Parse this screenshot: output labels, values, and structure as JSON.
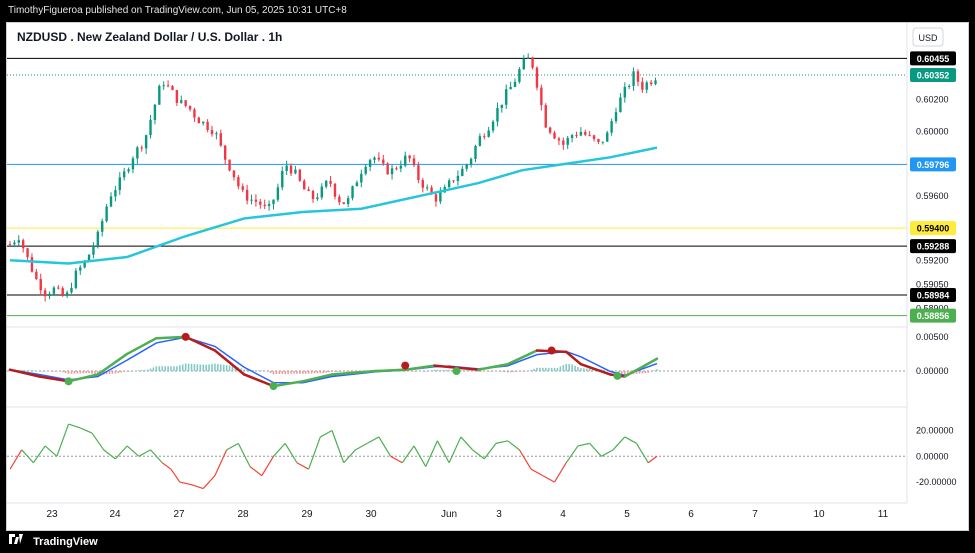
{
  "header": {
    "publisher": "TimothyFigueroa published on TradingView.com, Jun 05, 2025 10:31 UTC+8"
  },
  "footer": {
    "brand": "TradingView"
  },
  "currency_button": "USD",
  "chart_data": [
    {
      "type": "candlestick",
      "title": "NZDUSD . New Zealand Dollar / U.S. Dollar . 1h",
      "currency": "USD",
      "ylim": [
        0.5881,
        0.6065
      ],
      "y_ticks": [
        "0.60455",
        "0.60200",
        "0.60000",
        "0.59600",
        "0.59200",
        "0.59050",
        "0.58900"
      ],
      "x_ticks": [
        "23",
        "24",
        "27",
        "28",
        "29",
        "30",
        "Jun",
        "3",
        "4",
        "5",
        "6",
        "7",
        "10",
        "11"
      ],
      "price_levels": [
        {
          "value": 0.60455,
          "label": "0.60455",
          "line": "#000000",
          "tag_bg": "#000000",
          "tag_fg": "#ffffff"
        },
        {
          "value": 0.60352,
          "label": "0.60352",
          "line": "#089981",
          "tag_bg": "#089981",
          "tag_fg": "#ffffff",
          "dotted": true
        },
        {
          "value": 0.59796,
          "label": "0.59796",
          "line": "#2196f3",
          "tag_bg": "#2196f3",
          "tag_fg": "#ffffff"
        },
        {
          "value": 0.594,
          "label": "0.59400",
          "line": "#ffeb3b",
          "tag_bg": "#ffeb3b",
          "tag_fg": "#000000"
        },
        {
          "value": 0.59288,
          "label": "0.59288",
          "line": "#000000",
          "tag_bg": "#000000",
          "tag_fg": "#ffffff"
        },
        {
          "value": 0.58984,
          "label": "0.58984",
          "line": "#000000",
          "tag_bg": "#000000",
          "tag_fg": "#ffffff"
        },
        {
          "value": 0.58856,
          "label": "0.58856",
          "line": "#4caf50",
          "tag_bg": "#4caf50",
          "tag_fg": "#ffffff"
        }
      ],
      "price_path": [
        [
          0,
          0.593
        ],
        [
          6,
          0.5935
        ],
        [
          12,
          0.5921
        ],
        [
          18,
          0.5908
        ],
        [
          24,
          0.59
        ],
        [
          30,
          0.5902
        ],
        [
          38,
          0.5896
        ],
        [
          44,
          0.591
        ],
        [
          52,
          0.592
        ],
        [
          60,
          0.5935
        ],
        [
          68,
          0.596
        ],
        [
          76,
          0.597
        ],
        [
          84,
          0.5985
        ],
        [
          92,
          0.5995
        ],
        [
          100,
          0.602
        ],
        [
          104,
          0.6032
        ],
        [
          110,
          0.6025
        ],
        [
          116,
          0.6018
        ],
        [
          122,
          0.6015
        ],
        [
          128,
          0.6008
        ],
        [
          134,
          0.6004
        ],
        [
          140,
          0.6
        ],
        [
          146,
          0.5985
        ],
        [
          152,
          0.5975
        ],
        [
          158,
          0.5962
        ],
        [
          164,
          0.5958
        ],
        [
          170,
          0.5956
        ],
        [
          176,
          0.595
        ],
        [
          182,
          0.5962
        ],
        [
          188,
          0.598
        ],
        [
          194,
          0.5975
        ],
        [
          200,
          0.5965
        ],
        [
          206,
          0.5958
        ],
        [
          212,
          0.5962
        ],
        [
          218,
          0.597
        ],
        [
          224,
          0.5958
        ],
        [
          230,
          0.5955
        ],
        [
          236,
          0.5968
        ],
        [
          242,
          0.598
        ],
        [
          248,
          0.5985
        ],
        [
          254,
          0.5978
        ],
        [
          260,
          0.5975
        ],
        [
          266,
          0.598
        ],
        [
          272,
          0.5985
        ],
        [
          278,
          0.5972
        ],
        [
          284,
          0.5965
        ],
        [
          290,
          0.5958
        ],
        [
          296,
          0.5962
        ],
        [
          302,
          0.597
        ],
        [
          308,
          0.5975
        ],
        [
          314,
          0.5982
        ],
        [
          320,
          0.5995
        ],
        [
          326,
          0.6002
        ],
        [
          332,
          0.6012
        ],
        [
          338,
          0.6022
        ],
        [
          344,
          0.603
        ],
        [
          350,
          0.6042
        ],
        [
          354,
          0.6045
        ],
        [
          358,
          0.604
        ],
        [
          362,
          0.602
        ],
        [
          366,
          0.6005
        ],
        [
          372,
          0.5998
        ],
        [
          378,
          0.5992
        ],
        [
          384,
          0.5998
        ],
        [
          390,
          0.6
        ],
        [
          396,
          0.5996
        ],
        [
          402,
          0.5992
        ],
        [
          408,
          0.5998
        ],
        [
          414,
          0.6015
        ],
        [
          420,
          0.6025
        ],
        [
          426,
          0.6035
        ],
        [
          432,
          0.6028
        ],
        [
          438,
          0.6032
        ],
        [
          442,
          0.6035
        ]
      ],
      "ma_points": [
        [
          0,
          0.592
        ],
        [
          40,
          0.5918
        ],
        [
          80,
          0.5922
        ],
        [
          120,
          0.5935
        ],
        [
          160,
          0.5946
        ],
        [
          200,
          0.595
        ],
        [
          240,
          0.5952
        ],
        [
          280,
          0.596
        ],
        [
          320,
          0.5968
        ],
        [
          350,
          0.5976
        ],
        [
          380,
          0.598
        ],
        [
          410,
          0.5984
        ],
        [
          442,
          0.599
        ]
      ],
      "ma_color": "#26c6da",
      "x_max": 442
    },
    {
      "type": "line",
      "panel": "oscillator",
      "y_ticks": [
        "0.00500",
        "0.00000"
      ],
      "ylim": [
        -0.0035,
        0.006
      ],
      "fast_line_color": "#2962ff",
      "signal_up_color": "#4caf50",
      "signal_down_color": "#b71c1c",
      "signal": [
        [
          0,
          0.0002
        ],
        [
          20,
          -0.0008
        ],
        [
          40,
          -0.0015
        ],
        [
          60,
          -0.0005
        ],
        [
          80,
          0.0025
        ],
        [
          100,
          0.0048
        ],
        [
          120,
          0.005
        ],
        [
          140,
          0.003
        ],
        [
          160,
          -0.0005
        ],
        [
          180,
          -0.0022
        ],
        [
          200,
          -0.0015
        ],
        [
          220,
          -0.0005
        ],
        [
          250,
          0.0
        ],
        [
          270,
          0.0002
        ],
        [
          290,
          0.0008
        ],
        [
          300,
          0.0006
        ],
        [
          320,
          0.0002
        ],
        [
          340,
          0.001
        ],
        [
          360,
          0.003
        ],
        [
          380,
          0.0028
        ],
        [
          390,
          0.001
        ],
        [
          410,
          -0.0005
        ],
        [
          420,
          -0.0008
        ],
        [
          442,
          0.0018
        ]
      ],
      "crosses": [
        {
          "x": 40,
          "y": -0.0015,
          "color": "#4caf50"
        },
        {
          "x": 120,
          "y": 0.005,
          "color": "#b71c1c"
        },
        {
          "x": 180,
          "y": -0.0022,
          "color": "#4caf50"
        },
        {
          "x": 270,
          "y": 0.0008,
          "color": "#b71c1c"
        },
        {
          "x": 305,
          "y": 0.0,
          "color": "#4caf50"
        },
        {
          "x": 370,
          "y": 0.003,
          "color": "#b71c1c"
        },
        {
          "x": 415,
          "y": -0.0007,
          "color": "#4caf50"
        }
      ]
    },
    {
      "type": "line",
      "panel": "momentum",
      "y_ticks": [
        "20.00000",
        "0.00000",
        "-20.00000"
      ],
      "ylim": [
        -30,
        32
      ],
      "up_color": "#4caf50",
      "down_color": "#f44336",
      "values": [
        [
          0,
          -10
        ],
        [
          8,
          5
        ],
        [
          16,
          -5
        ],
        [
          24,
          8
        ],
        [
          32,
          0
        ],
        [
          40,
          25
        ],
        [
          48,
          22
        ],
        [
          56,
          18
        ],
        [
          64,
          5
        ],
        [
          72,
          -2
        ],
        [
          80,
          8
        ],
        [
          88,
          0
        ],
        [
          96,
          5
        ],
        [
          104,
          -5
        ],
        [
          110,
          -10
        ],
        [
          116,
          -20
        ],
        [
          124,
          -22
        ],
        [
          132,
          -25
        ],
        [
          140,
          -15
        ],
        [
          148,
          5
        ],
        [
          156,
          10
        ],
        [
          164,
          -8
        ],
        [
          172,
          -15
        ],
        [
          180,
          0
        ],
        [
          188,
          10
        ],
        [
          196,
          -5
        ],
        [
          204,
          -10
        ],
        [
          212,
          15
        ],
        [
          220,
          20
        ],
        [
          228,
          -5
        ],
        [
          236,
          5
        ],
        [
          244,
          10
        ],
        [
          252,
          15
        ],
        [
          260,
          0
        ],
        [
          268,
          -5
        ],
        [
          276,
          8
        ],
        [
          284,
          -8
        ],
        [
          292,
          12
        ],
        [
          300,
          -5
        ],
        [
          308,
          15
        ],
        [
          316,
          5
        ],
        [
          324,
          -2
        ],
        [
          332,
          10
        ],
        [
          340,
          12
        ],
        [
          348,
          5
        ],
        [
          356,
          -10
        ],
        [
          364,
          -15
        ],
        [
          372,
          -20
        ],
        [
          380,
          -5
        ],
        [
          388,
          8
        ],
        [
          396,
          10
        ],
        [
          404,
          0
        ],
        [
          412,
          5
        ],
        [
          420,
          15
        ],
        [
          428,
          10
        ],
        [
          436,
          -5
        ],
        [
          442,
          0
        ]
      ]
    }
  ]
}
